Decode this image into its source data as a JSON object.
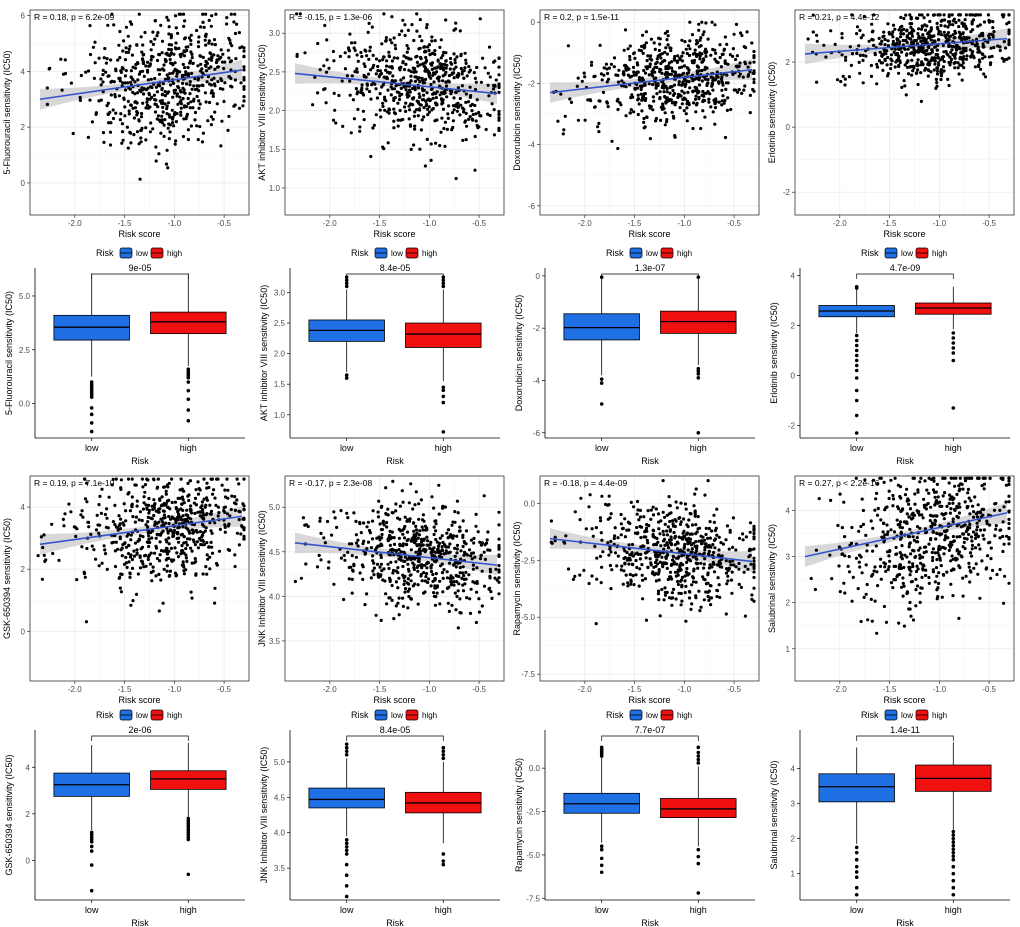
{
  "colors": {
    "low": "#1f6fe5",
    "high": "#f01010",
    "line": "#3355cc",
    "band": "#c8c8cc",
    "point": "#000000"
  },
  "legend": {
    "title": "Risk",
    "low": "low",
    "high": "high"
  },
  "chart_data": [
    {
      "type": "scatter",
      "drug": "5-Fluorouracil",
      "stat": "R = 0.18, p = 6.2e-09",
      "xlabel": "Risk score",
      "ylabel": "5-Fluorouracil sensitivity (IC50)",
      "xlim": [
        -2.45,
        -0.25
      ],
      "ylim": [
        -1.15,
        6.2
      ],
      "xticks": [
        -2.0,
        -1.5,
        -1.0,
        -0.5
      ],
      "xtick_labels": [
        "-2.0",
        "-1.5",
        "-1.0",
        "-0.5"
      ],
      "yticks": [
        0,
        2,
        4,
        6
      ],
      "ytick_labels": [
        "0",
        "2",
        "4",
        "6"
      ],
      "fit": {
        "x": [
          -2.35,
          -0.32
        ],
        "y": [
          3.0,
          4.05
        ]
      },
      "cloud": {
        "mean_y": 3.6,
        "sd_y": 1.1,
        "cap": 6.05,
        "slope": 0.52
      }
    },
    {
      "type": "scatter",
      "drug": "AKT inhibitor VIII",
      "stat": "R = -0.15, p = 1.3e-06",
      "xlabel": "Risk score",
      "ylabel": "AKT inhibitor VIII sensitivity (IC50)",
      "xlim": [
        -2.45,
        -0.25
      ],
      "ylim": [
        0.65,
        3.3
      ],
      "xticks": [
        -2.0,
        -1.5,
        -1.0,
        -0.5
      ],
      "xtick_labels": [
        "-2.0",
        "-1.5",
        "-1.0",
        "-0.5"
      ],
      "yticks": [
        1.0,
        1.5,
        2.0,
        2.5,
        3.0
      ],
      "ytick_labels": [
        "1.0",
        "1.5",
        "2.0",
        "2.5",
        "3.0"
      ],
      "fit": {
        "x": [
          -2.35,
          -0.32
        ],
        "y": [
          2.48,
          2.22
        ]
      },
      "cloud": {
        "mean_y": 2.33,
        "sd_y": 0.35,
        "cap": 3.25,
        "slope": -0.13
      }
    },
    {
      "type": "scatter",
      "drug": "Doxorubicin",
      "stat": "R = 0.2, p = 1.5e-11",
      "xlabel": "Risk score",
      "ylabel": "Doxorubicin sensitivity (IC50)",
      "xlim": [
        -2.45,
        -0.25
      ],
      "ylim": [
        -6.3,
        0.4
      ],
      "xticks": [
        -2.0,
        -1.5,
        -1.0,
        -0.5
      ],
      "xtick_labels": [
        "-2.0",
        "-1.5",
        "-1.0",
        "-0.5"
      ],
      "yticks": [
        -6,
        -4,
        -2,
        0
      ],
      "ytick_labels": [
        "-6",
        "-4",
        "-2",
        "0"
      ],
      "fit": {
        "x": [
          -2.35,
          -0.32
        ],
        "y": [
          -2.3,
          -1.55
        ]
      },
      "cloud": {
        "mean_y": -1.85,
        "sd_y": 0.75,
        "cap": 0.0,
        "slope": 0.37
      }
    },
    {
      "type": "scatter",
      "drug": "Erlotinib",
      "stat": "R = 0.21, p = 4.4e-12",
      "xlabel": "Risk score",
      "ylabel": "Erlotinib sensitivity (IC50)",
      "xlim": [
        -2.45,
        -0.25
      ],
      "ylim": [
        -2.7,
        3.6
      ],
      "xticks": [
        -2.0,
        -1.5,
        -1.0,
        -0.5
      ],
      "xtick_labels": [
        "-2.0",
        "-1.5",
        "-1.0",
        "-0.5"
      ],
      "yticks": [
        -2,
        0,
        2
      ],
      "ytick_labels": [
        "-2",
        "0",
        "2"
      ],
      "fit": {
        "x": [
          -2.35,
          -0.32
        ],
        "y": [
          2.25,
          2.72
        ]
      },
      "cloud": {
        "mean_y": 2.5,
        "sd_y": 0.55,
        "cap": 3.45,
        "slope": 0.23
      }
    },
    {
      "type": "box",
      "drug": "5-Fluorouracil",
      "pvalue": "9e-05",
      "xlabel": "Risk",
      "ylabel": "5-Fluorouracil sensitivity (IC50)",
      "categories": [
        "low",
        "high"
      ],
      "ylim": [
        -1.6,
        6.3
      ],
      "yticks": [
        0.0,
        2.5,
        5.0
      ],
      "ytick_labels": [
        "0.0",
        "2.5",
        "5.0"
      ],
      "boxes": [
        {
          "q1": 2.95,
          "median": 3.55,
          "q3": 4.1,
          "wmin": 1.25,
          "wmax": 6.05,
          "outliers": [
            1.0,
            0.9,
            0.8,
            0.7,
            0.6,
            0.5,
            0.4,
            0.3,
            -0.2,
            -0.5,
            -0.9,
            -1.3
          ]
        },
        {
          "q1": 3.25,
          "median": 3.8,
          "q3": 4.25,
          "wmin": 1.75,
          "wmax": 6.05,
          "outliers": [
            1.6,
            1.5,
            1.4,
            1.3,
            1.2,
            1.0,
            0.6,
            0.2,
            -0.3,
            -0.8
          ]
        }
      ]
    },
    {
      "type": "box",
      "drug": "AKT inhibitor VIII",
      "pvalue": "8.4e-05",
      "xlabel": "Risk",
      "ylabel": "AKT inhibitor VIII sensitivity (IC50)",
      "categories": [
        "low",
        "high"
      ],
      "ylim": [
        0.62,
        3.4
      ],
      "yticks": [
        1.0,
        1.5,
        2.0,
        2.5,
        3.0
      ],
      "ytick_labels": [
        "1.0",
        "1.5",
        "2.0",
        "2.5",
        "3.0"
      ],
      "boxes": [
        {
          "q1": 2.2,
          "median": 2.38,
          "q3": 2.55,
          "wmin": 1.7,
          "wmax": 3.05,
          "outliers": [
            3.1,
            3.15,
            3.2,
            3.25,
            1.65,
            1.6
          ]
        },
        {
          "q1": 2.1,
          "median": 2.32,
          "q3": 2.5,
          "wmin": 1.55,
          "wmax": 3.05,
          "outliers": [
            3.1,
            3.15,
            3.2,
            3.25,
            1.45,
            1.4,
            1.3,
            1.2,
            0.72
          ]
        }
      ]
    },
    {
      "type": "box",
      "drug": "Doxorubicin",
      "pvalue": "1.3e-07",
      "xlabel": "Risk",
      "ylabel": "Doxorubicin sensitivity (IC50)",
      "categories": [
        "low",
        "high"
      ],
      "ylim": [
        -6.2,
        0.3
      ],
      "yticks": [
        -6,
        -4,
        -2,
        0
      ],
      "ytick_labels": [
        "-6",
        "-4",
        "-2",
        "0"
      ],
      "boxes": [
        {
          "q1": -2.45,
          "median": -1.98,
          "q3": -1.45,
          "wmin": -3.8,
          "wmax": -0.1,
          "outliers": [
            -0.05,
            -3.95,
            -4.1,
            -4.9
          ]
        },
        {
          "q1": -2.2,
          "median": -1.75,
          "q3": -1.35,
          "wmin": -3.4,
          "wmax": -0.1,
          "outliers": [
            -0.05,
            -3.55,
            -3.65,
            -3.75,
            -3.9,
            -6.0
          ]
        }
      ]
    },
    {
      "type": "box",
      "drug": "Erlotinib",
      "pvalue": "4.7e-09",
      "xlabel": "Risk",
      "ylabel": "Erlotinib sensitivity (IC50)",
      "categories": [
        "low",
        "high"
      ],
      "ylim": [
        -2.5,
        4.3
      ],
      "yticks": [
        -2,
        0,
        2,
        4
      ],
      "ytick_labels": [
        "-2",
        "0",
        "2",
        "4"
      ],
      "boxes": [
        {
          "q1": 2.35,
          "median": 2.58,
          "q3": 2.8,
          "wmin": 1.7,
          "wmax": 3.45,
          "outliers": [
            3.5,
            3.55,
            1.6,
            1.4,
            1.2,
            1.0,
            0.8,
            0.6,
            0.4,
            0.2,
            -0.1,
            -0.6,
            -1.0,
            -1.6,
            -2.3
          ]
        },
        {
          "q1": 2.45,
          "median": 2.7,
          "q3": 2.9,
          "wmin": 1.85,
          "wmax": 3.55,
          "outliers": [
            1.7,
            1.5,
            1.3,
            1.1,
            0.9,
            0.6,
            -1.3
          ]
        }
      ]
    },
    {
      "type": "scatter",
      "drug": "GSK-650394",
      "stat": "R = 0.19, p = 7.1e-10",
      "xlabel": "Risk score",
      "ylabel": "GSK-650394 sensitivity (IC50)",
      "xlim": [
        -2.45,
        -0.25
      ],
      "ylim": [
        -1.6,
        5.0
      ],
      "xticks": [
        -2.0,
        -1.5,
        -1.0,
        -0.5
      ],
      "xtick_labels": [
        "-2.0",
        "-1.5",
        "-1.0",
        "-0.5"
      ],
      "yticks": [
        0,
        2,
        4
      ],
      "ytick_labels": [
        "0",
        "2",
        "4"
      ],
      "fit": {
        "x": [
          -2.35,
          -0.32
        ],
        "y": [
          2.8,
          3.7
        ]
      },
      "cloud": {
        "mean_y": 3.3,
        "sd_y": 0.85,
        "cap": 4.9,
        "slope": 0.44
      }
    },
    {
      "type": "scatter",
      "drug": "JNK Inhibitor VIII",
      "stat": "R = -0.17, p = 2.3e-08",
      "xlabel": "Risk score",
      "ylabel": "JNK Inhibitor VIII sensitivity (IC50)",
      "xlim": [
        -2.45,
        -0.25
      ],
      "ylim": [
        3.05,
        5.35
      ],
      "xticks": [
        -2.0,
        -1.5,
        -1.0,
        -0.5
      ],
      "xtick_labels": [
        "-2.0",
        "-1.5",
        "-1.0",
        "-0.5"
      ],
      "yticks": [
        3.5,
        4.0,
        4.5,
        5.0
      ],
      "ytick_labels": [
        "3.5",
        "4.0",
        "4.5",
        "5.0"
      ],
      "fit": {
        "x": [
          -2.35,
          -0.32
        ],
        "y": [
          4.6,
          4.35
        ]
      },
      "cloud": {
        "mean_y": 4.45,
        "sd_y": 0.3,
        "cap": 5.3,
        "slope": -0.12
      }
    },
    {
      "type": "scatter",
      "drug": "Rapamycin",
      "stat": "R = -0.18, p = 4.4e-09",
      "xlabel": "Risk score",
      "ylabel": "Rapamycin sensitivity (IC50)",
      "xlim": [
        -2.45,
        -0.25
      ],
      "ylim": [
        -7.8,
        1.2
      ],
      "xticks": [
        -2.0,
        -1.5,
        -1.0,
        -0.5
      ],
      "xtick_labels": [
        "-2.0",
        "-1.5",
        "-1.0",
        "-0.5"
      ],
      "yticks": [
        -7.5,
        -5.0,
        -2.5,
        0.0
      ],
      "ytick_labels": [
        "-7.5",
        "-5.0",
        "-2.5",
        "0.0"
      ],
      "fit": {
        "x": [
          -2.35,
          -0.32
        ],
        "y": [
          -1.55,
          -2.55
        ]
      },
      "cloud": {
        "mean_y": -2.2,
        "sd_y": 1.1,
        "cap": 1.0,
        "slope": -0.49
      }
    },
    {
      "type": "scatter",
      "drug": "Salubrinal",
      "stat": "R = 0.27, p < 2.2e-16",
      "xlabel": "Risk score",
      "ylabel": "Salubrinal sensitivity (IC50)",
      "xlim": [
        -2.45,
        -0.25
      ],
      "ylim": [
        0.3,
        4.75
      ],
      "xticks": [
        -2.0,
        -1.5,
        -1.0,
        -0.5
      ],
      "xtick_labels": [
        "-2.0",
        "-1.5",
        "-1.0",
        "-0.5"
      ],
      "yticks": [
        1,
        2,
        3,
        4
      ],
      "ytick_labels": [
        "1",
        "2",
        "3",
        "4"
      ],
      "fit": {
        "x": [
          -2.35,
          -0.32
        ],
        "y": [
          3.0,
          3.95
        ]
      },
      "cloud": {
        "mean_y": 3.5,
        "sd_y": 0.75,
        "cap": 4.7,
        "slope": 0.47
      }
    },
    {
      "type": "box",
      "drug": "GSK-650394",
      "pvalue": "2e-06",
      "xlabel": "Risk",
      "ylabel": "GSK-650394 sensitivity (IC50)",
      "categories": [
        "low",
        "high"
      ],
      "ylim": [
        -1.7,
        5.6
      ],
      "yticks": [
        0,
        2,
        4
      ],
      "ytick_labels": [
        "0",
        "2",
        "4"
      ],
      "boxes": [
        {
          "q1": 2.75,
          "median": 3.25,
          "q3": 3.75,
          "wmin": 1.3,
          "wmax": 4.95,
          "outliers": [
            1.2,
            1.1,
            1.0,
            0.9,
            0.8,
            0.6,
            0.4,
            -0.2,
            -1.3
          ]
        },
        {
          "q1": 3.05,
          "median": 3.5,
          "q3": 3.85,
          "wmin": 1.85,
          "wmax": 5.05,
          "outliers": [
            1.8,
            1.7,
            1.6,
            1.5,
            1.4,
            1.3,
            1.2,
            1.1,
            1.0,
            0.9,
            -0.6
          ]
        }
      ]
    },
    {
      "type": "box",
      "drug": "JNK Inhibitor VIII",
      "pvalue": "8.4e-05",
      "xlabel": "Risk",
      "ylabel": "JNK Inhibitor VIII sensitivity (IC50)",
      "categories": [
        "low",
        "high"
      ],
      "ylim": [
        3.05,
        5.45
      ],
      "yticks": [
        3.5,
        4.0,
        4.5,
        5.0
      ],
      "ytick_labels": [
        "3.5",
        "4.0",
        "4.5",
        "5.0"
      ],
      "boxes": [
        {
          "q1": 4.35,
          "median": 4.47,
          "q3": 4.63,
          "wmin": 3.95,
          "wmax": 5.05,
          "outliers": [
            5.1,
            5.15,
            5.2,
            5.25,
            3.9,
            3.85,
            3.8,
            3.75,
            3.7,
            3.55,
            3.4,
            3.25,
            3.1
          ]
        },
        {
          "q1": 4.28,
          "median": 4.42,
          "q3": 4.57,
          "wmin": 3.85,
          "wmax": 5.0,
          "outliers": [
            5.05,
            5.1,
            5.15,
            5.2,
            3.7,
            3.6,
            3.55
          ]
        }
      ]
    },
    {
      "type": "box",
      "drug": "Rapamycin",
      "pvalue": "7.7e-07",
      "xlabel": "Risk",
      "ylabel": "Rapamycin sensitivity (IC50)",
      "categories": [
        "low",
        "high"
      ],
      "ylim": [
        -7.6,
        2.2
      ],
      "yticks": [
        -7.5,
        -5.0,
        -2.5,
        0.0
      ],
      "ytick_labels": [
        "-7.5",
        "-5.0",
        "-2.5",
        "0.0"
      ],
      "boxes": [
        {
          "q1": -2.6,
          "median": -2.05,
          "q3": -1.45,
          "wmin": -4.3,
          "wmax": 0.6,
          "outliers": [
            0.7,
            0.8,
            0.9,
            1.0,
            1.1,
            1.2,
            -4.5,
            -4.7,
            -5.2,
            -5.6,
            -6.0
          ]
        },
        {
          "q1": -2.85,
          "median": -2.35,
          "q3": -1.75,
          "wmin": -4.5,
          "wmax": 0.1,
          "outliers": [
            0.3,
            0.5,
            0.7,
            0.9,
            1.2,
            -4.7,
            -5.1,
            -5.5,
            -7.2
          ]
        }
      ]
    },
    {
      "type": "box",
      "drug": "Salubrinal",
      "pvalue": "1.4e-11",
      "xlabel": "Risk",
      "ylabel": "Salubrinal sensitivity (IC50)",
      "categories": [
        "low",
        "high"
      ],
      "ylim": [
        0.25,
        5.1
      ],
      "yticks": [
        1,
        2,
        3,
        4
      ],
      "ytick_labels": [
        "1",
        "2",
        "3",
        "4"
      ],
      "boxes": [
        {
          "q1": 3.05,
          "median": 3.48,
          "q3": 3.85,
          "wmin": 1.85,
          "wmax": 4.6,
          "outliers": [
            1.75,
            1.6,
            1.4,
            1.2,
            1.05,
            0.9,
            0.6,
            0.4
          ]
        },
        {
          "q1": 3.35,
          "median": 3.72,
          "q3": 4.1,
          "wmin": 2.25,
          "wmax": 4.75,
          "outliers": [
            2.2,
            2.1,
            2.0,
            1.9,
            1.8,
            1.7,
            1.6,
            1.5,
            1.4,
            1.2,
            1.0,
            0.8,
            0.6,
            0.4
          ]
        }
      ]
    }
  ]
}
